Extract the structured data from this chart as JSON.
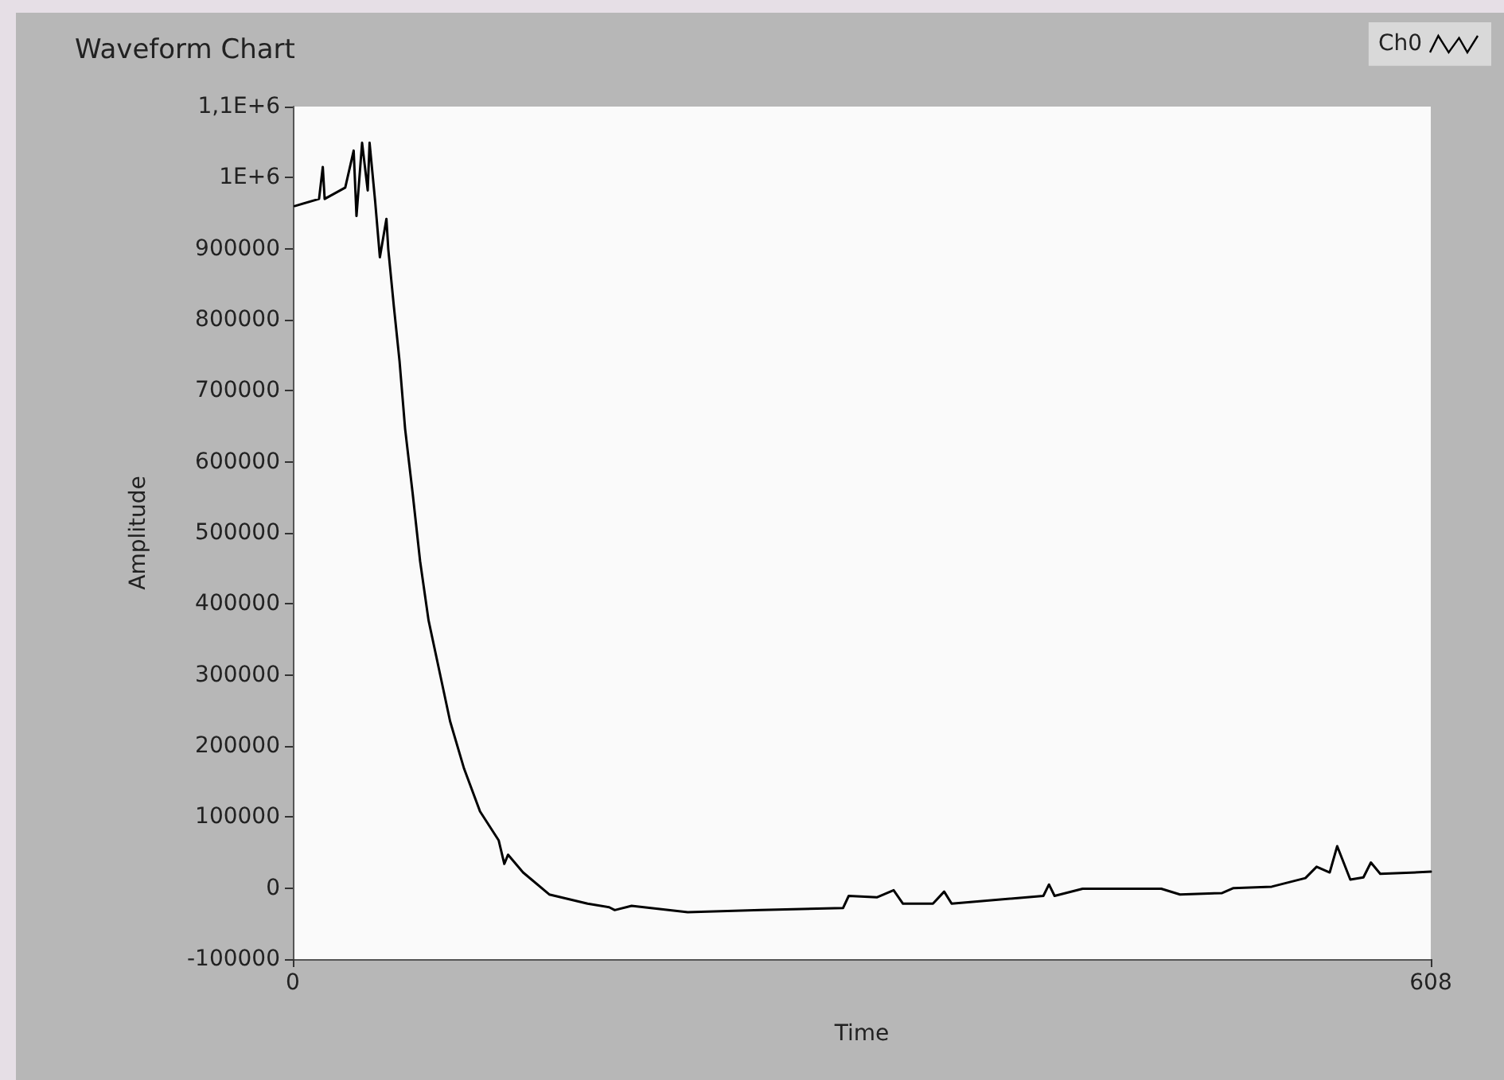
{
  "chart_data": {
    "type": "line",
    "title": "Waveform Chart",
    "xlabel": "Time",
    "ylabel": "Amplitude",
    "xlim": [
      0,
      608
    ],
    "xticks": [
      0,
      608
    ],
    "ylim": [
      -100000,
      1100000
    ],
    "yticks": [
      -100000,
      0,
      100000,
      200000,
      300000,
      400000,
      500000,
      600000,
      700000,
      800000,
      900000,
      {
        "value": 1000000,
        "label": "1E+6"
      },
      {
        "value": 1100000,
        "label": "1,1E+6"
      }
    ],
    "grid": false,
    "legend": "top right",
    "marker": "none",
    "line_style": "solid",
    "series": [
      {
        "name": "Ch0",
        "color": "#000000",
        "x": [
          1,
          14,
          16,
          17,
          28,
          32.5,
          34,
          37,
          40,
          41,
          44,
          46.5,
          50,
          51,
          54,
          57,
          60,
          64,
          68,
          72.5,
          78.5,
          84,
          91.5,
          100,
          110,
          113,
          115,
          123,
          137,
          157.5,
          169,
          172,
          181,
          211,
          250,
          294,
          297,
          312,
          321,
          326,
          342,
          348,
          352,
          401,
          404,
          407,
          422,
          464,
          474,
          496.5,
          502.6,
          523,
          541,
          547,
          554,
          558,
          565,
          572,
          576,
          581,
          608
        ],
        "values": [
          960000,
          970000,
          1015000,
          970000,
          986000,
          1038000,
          946000,
          1049000,
          982000,
          1049000,
          966000,
          888000,
          942000,
          899000,
          818000,
          742000,
          646000,
          556000,
          460000,
          377000,
          303000,
          235000,
          168000,
          108000,
          67000,
          34000,
          47000,
          22000,
          -9000,
          -22000,
          -27000,
          -31000,
          -25000,
          -34000,
          -31000,
          -28000,
          -11000,
          -13000,
          -3000,
          -22000,
          -22000,
          -5000,
          -22000,
          -11000,
          5000,
          -11000,
          -1000,
          -1000,
          -9000,
          -7000,
          0,
          2000,
          14000,
          30000,
          22000,
          59000,
          12000,
          15000,
          36000,
          20000,
          23000
        ]
      }
    ]
  }
}
